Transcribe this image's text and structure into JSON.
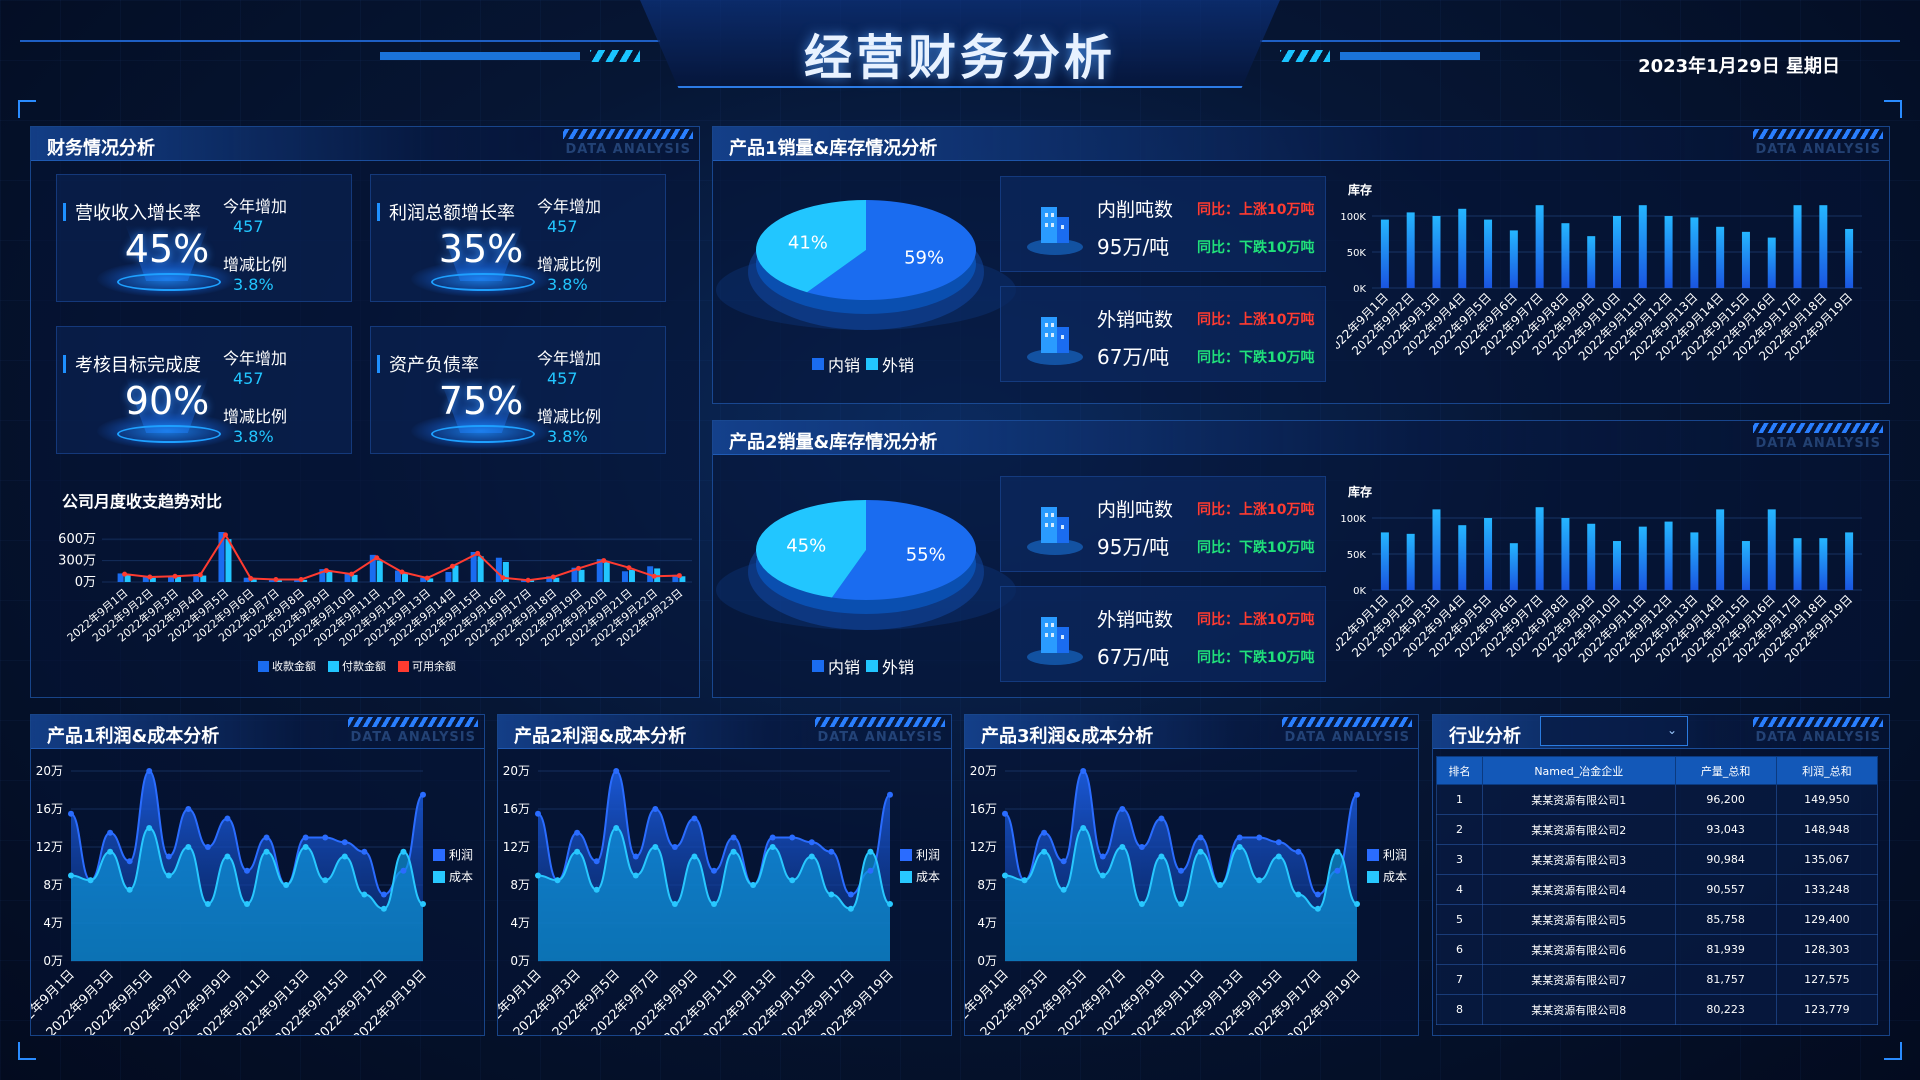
{
  "header": {
    "title": "经营财务分析",
    "date": "2023年1月29日 星期日"
  },
  "panel_sub": "DATA ANALYSIS",
  "finance": {
    "title": "财务情况分析",
    "kpis": [
      {
        "label": "营收收入增长率",
        "value": "45%",
        "k1": "今年增加",
        "v1": "457",
        "k2": "增减比例",
        "v2": "3.8%"
      },
      {
        "label": "利润总额增长率",
        "value": "35%",
        "k1": "今年增加",
        "v1": "457",
        "k2": "增减比例",
        "v2": "3.8%"
      },
      {
        "label": "考核目标完成度",
        "value": "90%",
        "k1": "今年增加",
        "v1": "457",
        "k2": "增减比例",
        "v2": "3.8%"
      },
      {
        "label": "资产负债率",
        "value": "75%",
        "k1": "今年增加",
        "v1": "457",
        "k2": "增减比例",
        "v2": "3.8%"
      }
    ],
    "trend_title": "公司月度收支趋势对比"
  },
  "product1": {
    "title": "产品1销量&库存情况分析",
    "pie": {
      "inner_pct": "59%",
      "outer_pct": "41%"
    },
    "cards": [
      {
        "label": "内削吨数",
        "value": "95万/吨",
        "up": "同比：上涨10万吨",
        "down": "同比：下跌10万吨"
      },
      {
        "label": "外销吨数",
        "value": "67万/吨",
        "up": "同比：上涨10万吨",
        "down": "同比：下跌10万吨"
      }
    ]
  },
  "product2": {
    "title": "产品2销量&库存情况分析",
    "pie": {
      "inner_pct": "55%",
      "outer_pct": "45%"
    },
    "cards": [
      {
        "label": "内削吨数",
        "value": "95万/吨",
        "up": "同比：上涨10万吨",
        "down": "同比：下跌10万吨"
      },
      {
        "label": "外销吨数",
        "value": "67万/吨",
        "up": "同比：上涨10万吨",
        "down": "同比：下跌10万吨"
      }
    ]
  },
  "pie_legend": {
    "inner": "内销",
    "outer": "外销"
  },
  "profit_titles": [
    "产品1利润&成本分析",
    "产品2利润&成本分析",
    "产品3利润&成本分析"
  ],
  "industry": {
    "title": "行业分析",
    "select_value": "",
    "columns": [
      "排名",
      "Named_冶金企业",
      "产量_总和",
      "利润_总和"
    ],
    "rows": [
      [
        "1",
        "某某资源有限公司1",
        "96,200",
        "149,950"
      ],
      [
        "2",
        "某某资源有限公司2",
        "93,043",
        "148,948"
      ],
      [
        "3",
        "某某资源有限公司3",
        "90,984",
        "135,067"
      ],
      [
        "4",
        "某某资源有限公司4",
        "90,557",
        "133,248"
      ],
      [
        "5",
        "某某资源有限公司5",
        "85,758",
        "129,400"
      ],
      [
        "6",
        "某某资源有限公司6",
        "81,939",
        "128,303"
      ],
      [
        "7",
        "某某资源有限公司7",
        "81,757",
        "127,575"
      ],
      [
        "8",
        "某某资源有限公司8",
        "80,223",
        "123,779"
      ]
    ]
  },
  "colors": {
    "accent": "#1e90ff",
    "cyan": "#22c6ff",
    "up": "#ff3b30",
    "down": "#20e07a",
    "title_bg": "#1358b8"
  },
  "chart_data": [
    {
      "id": "monthly-trend",
      "type": "bar",
      "title": "公司月度收支趋势对比",
      "categories": [
        "2022年9月1日",
        "2022年9月2日",
        "2022年9月3日",
        "2022年9月4日",
        "2022年9月5日",
        "2022年9月6日",
        "2022年9月7日",
        "2022年9月8日",
        "2022年9月9日",
        "2022年9月10日",
        "2022年9月11日",
        "2022年9月12日",
        "2022年9月13日",
        "2022年9月14日",
        "2022年9月15日",
        "2022年9月16日",
        "2022年9月17日",
        "2022年9月18日",
        "2022年9月19日",
        "2022年9月20日",
        "2022年9月21日",
        "2022年9月22日",
        "2022年9月23日"
      ],
      "yticks": [
        "600万",
        "300万",
        "0万"
      ],
      "ylim": [
        0,
        700
      ],
      "series": [
        {
          "name": "收款金额",
          "kind": "bar",
          "values": [
            120,
            80,
            90,
            110,
            700,
            60,
            40,
            40,
            180,
            120,
            380,
            160,
            60,
            140,
            420,
            340,
            30,
            80,
            200,
            320,
            150,
            220,
            100
          ]
        },
        {
          "name": "付款金额",
          "kind": "bar",
          "values": [
            100,
            60,
            70,
            90,
            600,
            40,
            30,
            30,
            150,
            100,
            300,
            130,
            50,
            230,
            360,
            280,
            20,
            60,
            170,
            280,
            170,
            190,
            80
          ]
        },
        {
          "name": "可用余额",
          "kind": "line",
          "values": [
            110,
            70,
            80,
            100,
            660,
            50,
            35,
            35,
            160,
            110,
            340,
            140,
            55,
            220,
            400,
            60,
            25,
            70,
            190,
            300,
            200,
            80,
            90
          ]
        }
      ],
      "legend": "bottom"
    },
    {
      "id": "product1-stock",
      "type": "bar",
      "ylabel": "库存",
      "yticks": [
        "100K",
        "50K",
        "0K"
      ],
      "ylim": [
        0,
        120
      ],
      "categories": [
        "2022年9月1日",
        "2022年9月2日",
        "2022年9月3日",
        "2022年9月4日",
        "2022年9月5日",
        "2022年9月6日",
        "2022年9月7日",
        "2022年9月8日",
        "2022年9月9日",
        "2022年9月10日",
        "2022年9月11日",
        "2022年9月12日",
        "2022年9月13日",
        "2022年9月14日",
        "2022年9月15日",
        "2022年9月16日",
        "2022年9月17日",
        "2022年9月18日",
        "2022年9月19日"
      ],
      "values": [
        95,
        105,
        100,
        110,
        95,
        80,
        120,
        90,
        72,
        100,
        115,
        100,
        98,
        85,
        78,
        70,
        122,
        115,
        82
      ]
    },
    {
      "id": "product2-stock",
      "type": "bar",
      "ylabel": "库存",
      "yticks": [
        "100K",
        "50K",
        "0K"
      ],
      "ylim": [
        0,
        120
      ],
      "categories": [
        "2022年9月1日",
        "2022年9月2日",
        "2022年9月3日",
        "2022年9月4日",
        "2022年9月5日",
        "2022年9月6日",
        "2022年9月7日",
        "2022年9月8日",
        "2022年9月9日",
        "2022年9月10日",
        "2022年9月11日",
        "2022年9月12日",
        "2022年9月13日",
        "2022年9月14日",
        "2022年9月15日",
        "2022年9月16日",
        "2022年9月17日",
        "2022年9月18日",
        "2022年9月19日"
      ],
      "values": [
        80,
        78,
        112,
        90,
        100,
        65,
        118,
        100,
        92,
        68,
        88,
        95,
        80,
        112,
        68,
        112,
        72,
        72,
        80
      ]
    },
    {
      "id": "profit-cost",
      "type": "area",
      "yticks": [
        "20万",
        "16万",
        "12万",
        "8万",
        "4万",
        "0万"
      ],
      "ylim": [
        0,
        20
      ],
      "categories": [
        "2022年9月1日",
        "2022年9月2日",
        "2022年9月3日",
        "2022年9月4日",
        "2022年9月5日",
        "2022年9月6日",
        "2022年9月7日",
        "2022年9月8日",
        "2022年9月9日",
        "2022年9月10日",
        "2022年9月11日",
        "2022年9月12日",
        "2022年9月13日",
        "2022年9月14日",
        "2022年9月15日",
        "2022年9月16日",
        "2022年9月17日",
        "2022年9月18日",
        "2022年9月19日"
      ],
      "xlabels": [
        "2022年9月1日",
        "2022年9月3日",
        "2022年9月5日",
        "2022年9月7日",
        "2022年9月9日",
        "2022年9月11日",
        "2022年9月13日",
        "2022年9月15日",
        "2022年9月17日",
        "2022年9月19日"
      ],
      "series": [
        {
          "name": "利润",
          "values": [
            15.5,
            8.5,
            13.5,
            10.5,
            20.0,
            11.0,
            16.0,
            12.0,
            15.0,
            9.5,
            13.0,
            8.0,
            13.0,
            13.0,
            12.5,
            11.5,
            7.0,
            9.5,
            17.5
          ]
        },
        {
          "name": "成本",
          "values": [
            9.0,
            8.5,
            11.5,
            7.5,
            14.0,
            9.0,
            12.0,
            6.0,
            11.0,
            6.0,
            11.5,
            8.0,
            12.0,
            8.5,
            11.0,
            7.0,
            5.5,
            11.5,
            6.0
          ]
        }
      ],
      "legend": "right"
    }
  ]
}
